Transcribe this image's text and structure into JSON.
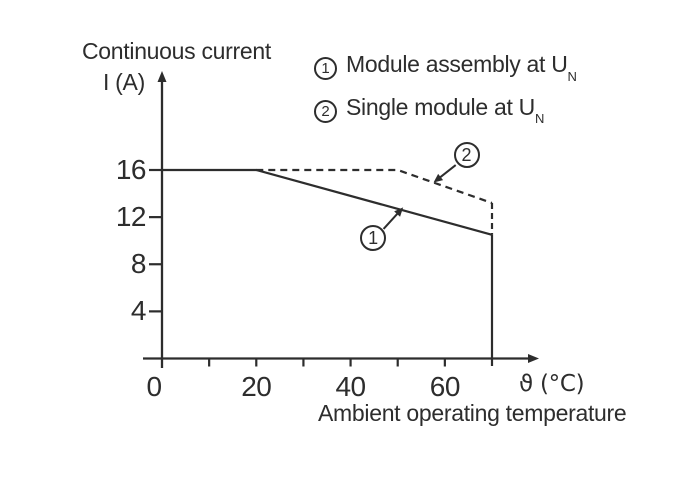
{
  "figure": {
    "y_axis_title_line1": "Continuous current",
    "y_axis_title_line2": "I (A)",
    "x_axis_symbol_label": "ϑ (°C)",
    "x_axis_caption": "Ambient operating temperature"
  },
  "legend": {
    "items": [
      {
        "num": "1",
        "text": "Module assembly at U",
        "sub": "N"
      },
      {
        "num": "2",
        "text": "Single module at U",
        "sub": "N"
      }
    ]
  },
  "chart_data": {
    "type": "line",
    "title": "",
    "x_axis": {
      "symbol": "ϑ",
      "unit": "°C",
      "caption": "Ambient operating temperature",
      "range": [
        0,
        75
      ],
      "labeled_ticks": [
        0,
        20,
        40,
        60
      ],
      "minor_ticks": [
        10,
        30,
        50
      ]
    },
    "y_axis": {
      "quantity": "Continuous current",
      "symbol": "I",
      "unit": "A",
      "range": [
        0,
        18
      ],
      "labeled_ticks": [
        4,
        8,
        12,
        16
      ]
    },
    "series": [
      {
        "id": "1",
        "name": "Module assembly at UN",
        "line_style": "solid",
        "points": [
          [
            0,
            16
          ],
          [
            20,
            16
          ],
          [
            70,
            10.5
          ]
        ]
      },
      {
        "id": "2",
        "name": "Single module at UN",
        "line_style": "dashed",
        "points": [
          [
            20,
            16
          ],
          [
            50,
            16
          ],
          [
            70,
            13.2
          ]
        ]
      }
    ],
    "limit_line": {
      "x": 70,
      "dashed_from": 13.2,
      "dashed_to": 10.5,
      "solid_from": 10.5,
      "solid_to": 0
    },
    "annotations": [
      {
        "num": "1",
        "circle_at": [
          44.8,
          10.23
        ],
        "arrow_from": [
          47.0,
          11.0
        ],
        "arrow_to": [
          50.3,
          12.45
        ]
      },
      {
        "num": "2",
        "circle_at": [
          64.6,
          17.28
        ],
        "arrow_from": [
          62.3,
          16.42
        ],
        "arrow_to": [
          58.6,
          15.25
        ]
      }
    ],
    "colors": {
      "ink": "#2d2d2d",
      "background": "#ffffff"
    }
  }
}
